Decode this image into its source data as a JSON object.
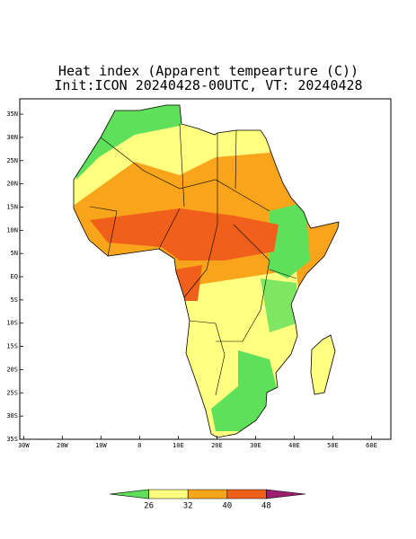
{
  "title": "Heat index (Apparent tempearture (C))",
  "subtitle": "Init:ICON 20240428-00UTC, VT: 20240428",
  "map": {
    "xlim": [
      -31,
      65
    ],
    "ylim": [
      -35,
      38.3
    ],
    "xticks": [
      {
        "value": -30,
        "label": "30W"
      },
      {
        "value": -20,
        "label": "20W"
      },
      {
        "value": -10,
        "label": "10W"
      },
      0,
      {
        "value": 10,
        "label": "10E"
      },
      {
        "value": 20,
        "label": "20E"
      },
      {
        "value": 30,
        "label": "30E"
      },
      {
        "value": 40,
        "label": "40E"
      },
      {
        "value": 50,
        "label": "50E"
      },
      {
        "value": 60,
        "label": "60E"
      }
    ],
    "yticks": [
      {
        "value": 35,
        "label": "35N"
      },
      {
        "value": 30,
        "label": "30N"
      },
      {
        "value": 25,
        "label": "25N"
      },
      {
        "value": 20,
        "label": "20N"
      },
      {
        "value": 15,
        "label": "15N"
      },
      {
        "value": 10,
        "label": "10N"
      },
      {
        "value": 5,
        "label": "5N"
      },
      {
        "value": 0,
        "label": "EQ"
      },
      {
        "value": -5,
        "label": "5S"
      },
      {
        "value": -10,
        "label": "10S"
      },
      {
        "value": -15,
        "label": "15S"
      },
      {
        "value": -20,
        "label": "20S"
      },
      {
        "value": -25,
        "label": "25S"
      },
      {
        "value": -30,
        "label": "30S"
      },
      {
        "value": -35,
        "label": "35S"
      }
    ]
  },
  "colorbar": {
    "ticks": [
      26,
      32,
      40,
      48
    ],
    "colors": [
      "#5ee05a",
      "#ffff80",
      "#f8a51c",
      "#f0601a",
      "#9c1f6e"
    ]
  }
}
